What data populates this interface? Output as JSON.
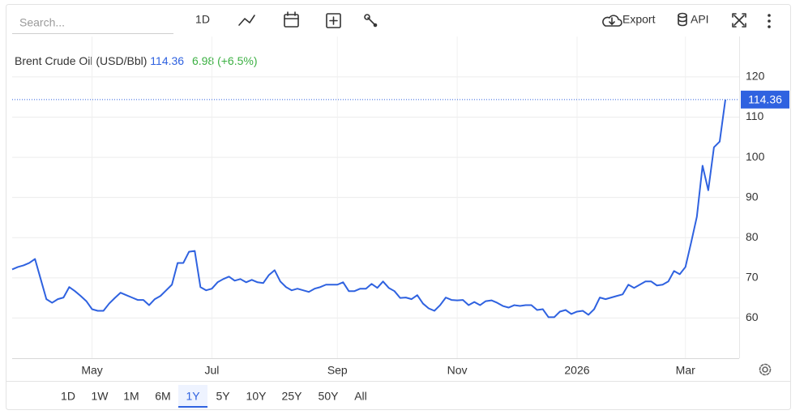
{
  "toolbar": {
    "search_placeholder": "Search...",
    "interval": "1D",
    "export": "Export",
    "api": "API"
  },
  "chart_data": {
    "type": "line",
    "title": "Brent Crude Oil (USD/Bbl)",
    "price": "114.36",
    "change": "6.98 (+6.5%)",
    "categories": [
      null,
      null,
      null,
      null,
      null,
      null,
      null,
      null,
      null,
      null,
      null,
      null,
      null,
      null,
      "May",
      null,
      null,
      null,
      null,
      null,
      null,
      null,
      null,
      null,
      null,
      null,
      null,
      null,
      null,
      null,
      null,
      null,
      null,
      null,
      null,
      "Jul",
      null,
      null,
      null,
      null,
      null,
      null,
      null,
      null,
      null,
      null,
      null,
      null,
      null,
      null,
      null,
      null,
      null,
      null,
      null,
      null,
      null,
      "Sep",
      null,
      null,
      null,
      null,
      null,
      null,
      null,
      null,
      null,
      null,
      null,
      null,
      null,
      null,
      null,
      null,
      null,
      null,
      null,
      null,
      "Nov",
      null,
      null,
      null,
      null,
      null,
      null,
      null,
      null,
      null,
      null,
      null,
      null,
      null,
      null,
      null,
      null,
      null,
      null,
      null,
      null,
      "2026",
      null,
      null,
      null,
      null,
      null,
      null,
      null,
      null,
      null,
      null,
      null,
      null,
      null,
      null,
      null,
      null,
      null,
      null,
      "Mar",
      null,
      null,
      null,
      null,
      null,
      null,
      null
    ],
    "values": [
      72.1,
      72.7,
      73.1,
      73.7,
      74.7,
      69.7,
      64.7,
      63.8,
      64.7,
      65.1,
      67.7,
      66.7,
      65.5,
      64.2,
      62.2,
      61.8,
      61.8,
      63.6,
      65.0,
      66.3,
      65.7,
      65.1,
      64.5,
      64.5,
      63.2,
      64.7,
      65.5,
      66.9,
      68.3,
      73.7,
      73.7,
      76.5,
      76.7,
      67.7,
      66.9,
      67.3,
      68.9,
      69.7,
      70.3,
      69.3,
      69.7,
      68.9,
      69.5,
      68.9,
      68.7,
      70.7,
      71.9,
      69.1,
      67.7,
      66.9,
      67.3,
      66.9,
      66.5,
      67.3,
      67.7,
      68.3,
      68.3,
      68.3,
      68.9,
      66.7,
      66.7,
      67.3,
      67.3,
      68.5,
      67.5,
      69.1,
      67.5,
      66.7,
      65.0,
      65.1,
      64.7,
      65.7,
      63.6,
      62.4,
      61.8,
      63.2,
      65.1,
      64.5,
      64.4,
      64.5,
      63.2,
      64.0,
      63.2,
      64.2,
      64.4,
      63.8,
      63.0,
      62.6,
      63.2,
      63.0,
      63.2,
      63.2,
      62.0,
      62.2,
      60.2,
      60.2,
      61.6,
      62.0,
      61.0,
      61.6,
      61.8,
      60.8,
      62.2,
      65.1,
      64.7,
      65.1,
      65.5,
      65.9,
      68.3,
      67.5,
      68.3,
      69.1,
      69.1,
      68.1,
      68.3,
      69.1,
      71.7,
      70.9,
      72.7,
      78.8,
      85.2,
      97.9,
      91.8,
      102.5,
      103.9,
      114.36
    ],
    "color": "#2f62e0",
    "change_color": "#3cb043",
    "ylim": [
      50,
      130
    ],
    "yticks": [
      60,
      70,
      80,
      90,
      100,
      110,
      120
    ],
    "grid": true,
    "ranges": [
      "1D",
      "1W",
      "1M",
      "6M",
      "1Y",
      "5Y",
      "10Y",
      "25Y",
      "50Y",
      "All"
    ],
    "active_range": "1Y"
  }
}
